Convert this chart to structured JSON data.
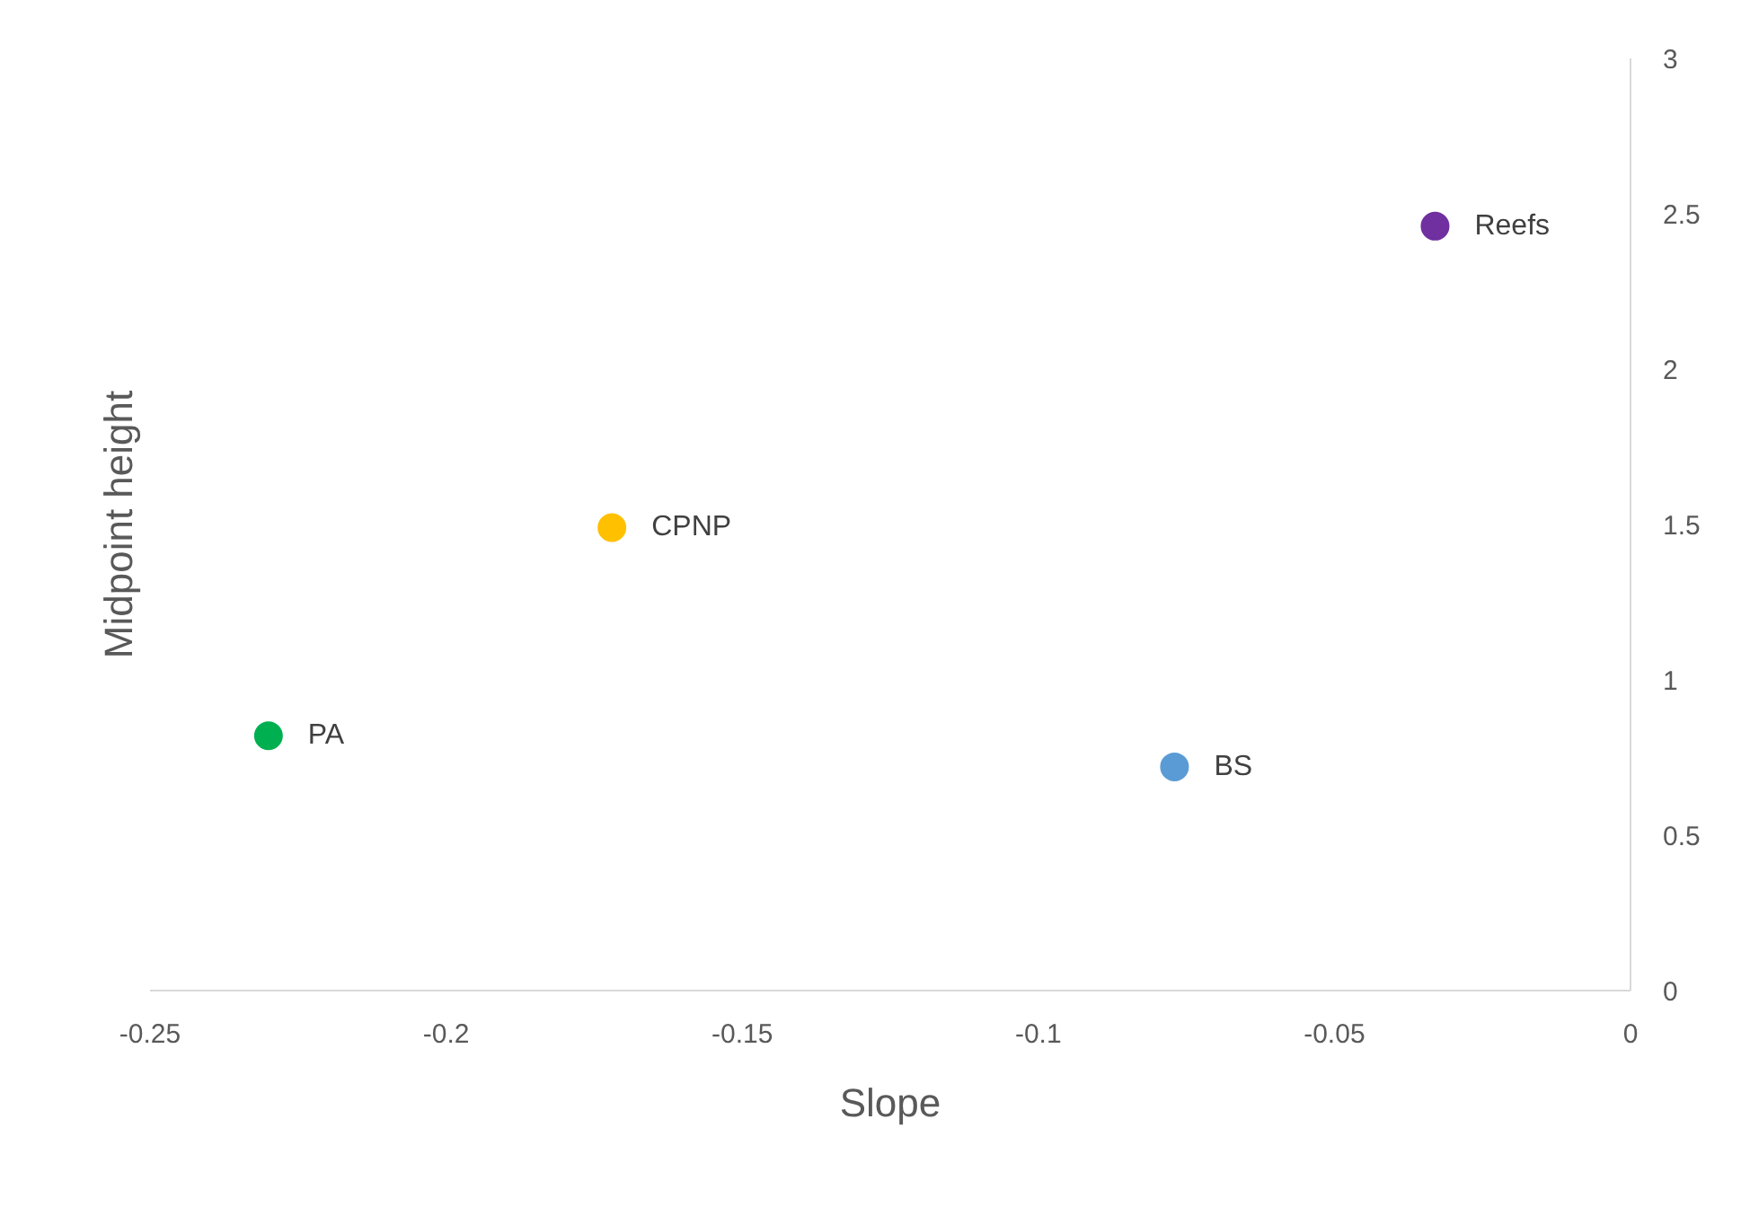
{
  "chart_data": {
    "type": "scatter",
    "xlabel": "Slope",
    "ylabel": "Midpoint height",
    "xlim": [
      -0.25,
      0
    ],
    "xticks": [
      -0.25,
      -0.2,
      -0.15,
      -0.1,
      -0.05,
      0
    ],
    "ylim": [
      0,
      3
    ],
    "yticks": [
      0,
      0.5,
      1,
      1.5,
      2,
      2.5,
      3
    ],
    "grid": false,
    "legend": false,
    "marker": "circle",
    "series": [
      {
        "name": "PA",
        "color": "#00b050",
        "x": [
          -0.23
        ],
        "values": [
          0.82
        ]
      },
      {
        "name": "CPNP",
        "color": "#ffc000",
        "x": [
          -0.172
        ],
        "values": [
          1.49
        ]
      },
      {
        "name": "BS",
        "color": "#5b9bd5",
        "x": [
          -0.077
        ],
        "values": [
          0.72
        ]
      },
      {
        "name": "Reefs",
        "color": "#7030a0",
        "x": [
          -0.033
        ],
        "values": [
          2.46
        ]
      }
    ]
  }
}
